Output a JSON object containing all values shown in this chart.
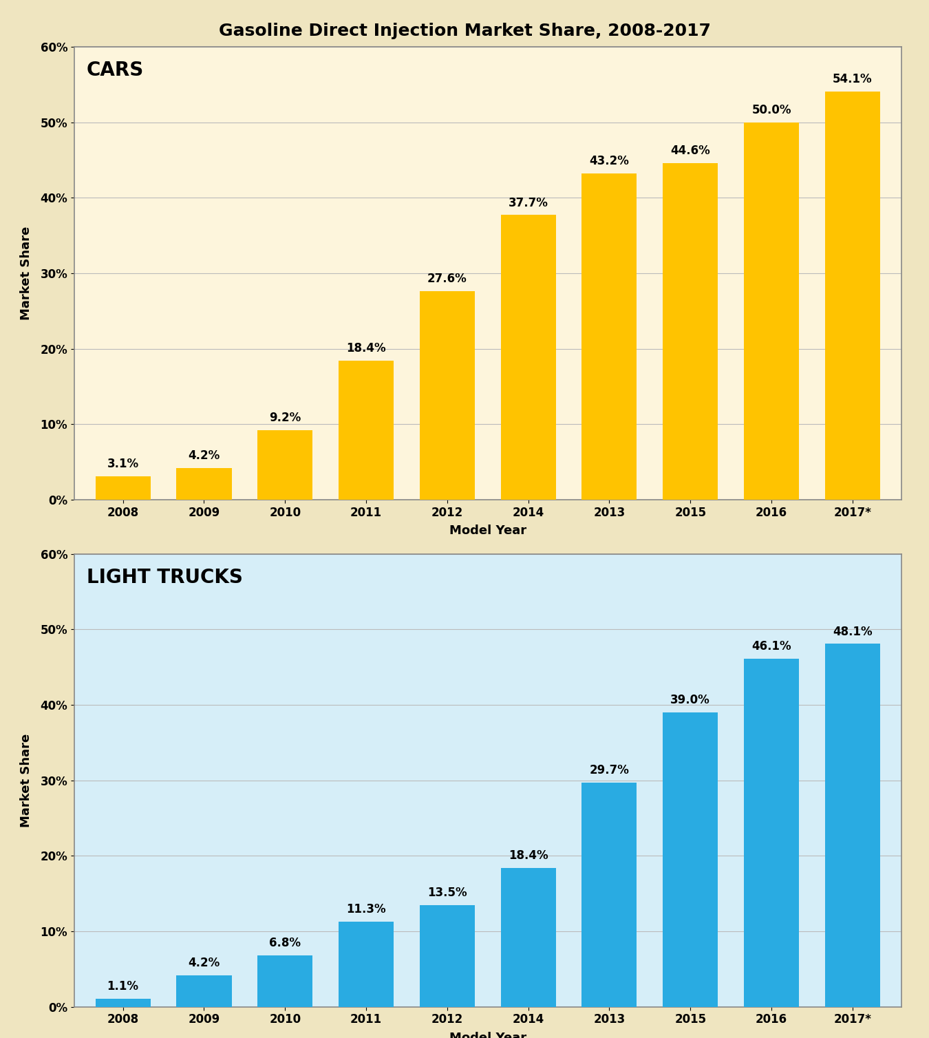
{
  "title": "Gasoline Direct Injection Market Share, 2008-2017",
  "title_fontsize": 18,
  "title_fontweight": "bold",
  "categories": [
    "2008",
    "2009",
    "2010",
    "2011",
    "2012",
    "2014",
    "2013",
    "2015",
    "2016",
    "2017*"
  ],
  "cars_values": [
    3.1,
    4.2,
    9.2,
    18.4,
    27.6,
    37.7,
    43.2,
    44.6,
    50.0,
    54.1
  ],
  "cars_labels": [
    "3.1%",
    "4.2%",
    "9.2%",
    "18.4%",
    "27.6%",
    "37.7%",
    "43.2%",
    "44.6%",
    "50.0%",
    "54.1%"
  ],
  "trucks_values": [
    1.1,
    4.2,
    6.8,
    11.3,
    13.5,
    18.4,
    29.7,
    39.0,
    46.1,
    48.1
  ],
  "trucks_labels": [
    "1.1%",
    "4.2%",
    "6.8%",
    "11.3%",
    "13.5%",
    "18.4%",
    "29.7%",
    "39.0%",
    "46.1%",
    "48.1%"
  ],
  "cars_bar_color": "#FFC300",
  "trucks_bar_color": "#29ABE2",
  "cars_label": "CARS",
  "trucks_label": "LIGHT TRUCKS",
  "ylabel": "Market Share",
  "xlabel": "Model Year",
  "ylim": [
    0,
    60
  ],
  "yticks": [
    0,
    10,
    20,
    30,
    40,
    50,
    60
  ],
  "ytick_labels": [
    "0%",
    "10%",
    "20%",
    "30%",
    "40%",
    "50%",
    "60%"
  ],
  "cars_bg": "#FDF5DC",
  "trucks_bg": "#D6EEF8",
  "outer_bg": "#EFE5C0",
  "panel_border_color": "#888888",
  "grid_color": "#BBBBBB",
  "bar_label_fontsize": 12,
  "axis_label_fontsize": 13,
  "tick_fontsize": 12,
  "subplot_title_fontsize": 20,
  "subplot_title_fontweight": "bold"
}
